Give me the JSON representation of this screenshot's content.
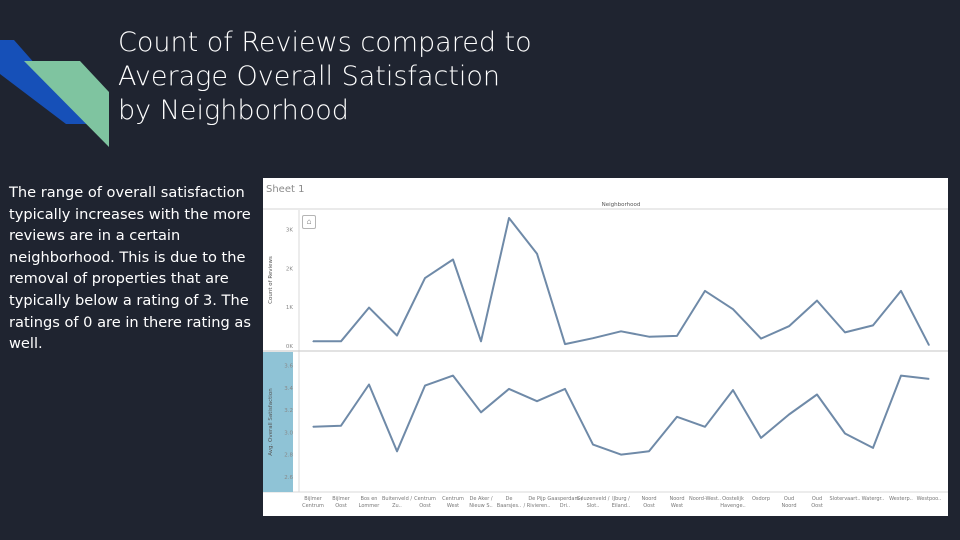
{
  "slide": {
    "title": "Count of Reviews compared to Average Overall Satisfaction by Neighborhood",
    "body": "The range of overall satisfaction typically increases with the more reviews are in a certain neighborhood. This is due to the removal of properties that are typically below a rating of 3. The ratings of 0 are in there rating as well.",
    "colors": {
      "background": "#1f2430",
      "deco_blue": "#1650b8",
      "deco_green": "#7fc4a0",
      "line": "#6f8aa8",
      "row_header": "#8fc3d6"
    }
  },
  "tableau": {
    "sheet_title": "Sheet 1",
    "column_header": "Neighborhood",
    "home_icon": "home-icon"
  },
  "chart_data": [
    {
      "type": "line",
      "ylabel": "Count of Reviews",
      "ylim": [
        0,
        3300
      ],
      "yticks": [
        "0K",
        "1K",
        "2K",
        "3K"
      ],
      "categories": [
        "Bijlmer Centrum",
        "Bijlmer Oost",
        "Bos en Lommer",
        "Buitenveld / Zu..",
        "Centrum Oost",
        "Centrum West",
        "De Aker / Nieuw S..",
        "De Baarsjes..",
        "De Pijp / Rivieren..",
        "Gaasperdam / Dri..",
        "Geuzenveld / Slot..",
        "IJburg / Eiland..",
        "Noord Oost",
        "Noord West",
        "Noord-West..",
        "Oostelijk Havenge..",
        "Osdorp",
        "Oud Noord",
        "Oud Oost",
        "Slotervaart..",
        "Watergr..",
        "Westerp..",
        "Westpoo.."
      ],
      "values": [
        120,
        120,
        990,
        270,
        1750,
        2230,
        120,
        3300,
        2380,
        50,
        200,
        380,
        240,
        260,
        1420,
        950,
        190,
        510,
        1170,
        350,
        530,
        1420,
        20
      ]
    },
    {
      "type": "line",
      "ylabel": "Avg. Overall Satisfaction",
      "ylim": [
        2.5,
        3.65
      ],
      "yticks": [
        "2.6",
        "2.8",
        "3.0",
        "3.2",
        "3.4",
        "3.6"
      ],
      "categories": [
        "Bijlmer Centrum",
        "Bijlmer Oost",
        "Bos en Lommer",
        "Buitenveld / Zu..",
        "Centrum Oost",
        "Centrum West",
        "De Aker / Nieuw S..",
        "De Baarsjes..",
        "De Pijp / Rivieren..",
        "Gaasperdam / Dri..",
        "Geuzenveld / Slot..",
        "IJburg / Eiland..",
        "Noord Oost",
        "Noord West",
        "Noord-West..",
        "Oostelijk Havenge..",
        "Osdorp",
        "Oud Noord",
        "Oud Oost",
        "Slotervaart..",
        "Watergr..",
        "Westerp..",
        "Westpoo.."
      ],
      "values": [
        3.05,
        3.06,
        3.43,
        2.83,
        3.42,
        3.51,
        3.18,
        3.39,
        3.28,
        3.39,
        2.89,
        2.8,
        2.83,
        3.14,
        3.05,
        3.38,
        2.95,
        3.16,
        3.34,
        2.99,
        2.86,
        3.51,
        3.48
      ]
    }
  ]
}
